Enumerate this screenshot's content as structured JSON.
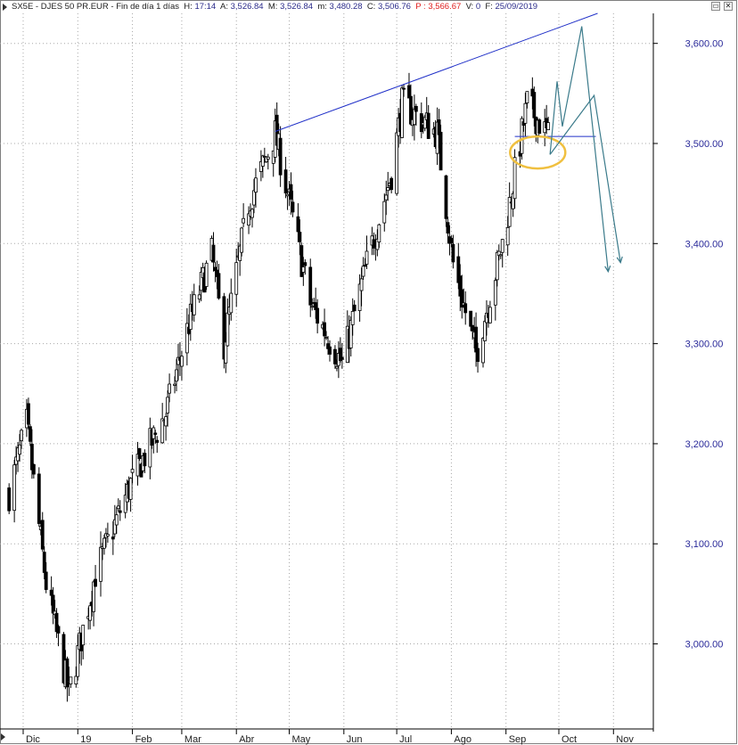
{
  "header": {
    "symbol": "SX5E",
    "name": "DJES 50 PR.EUR",
    "period": "Fin de día 1 días",
    "h_label": "H:",
    "h_value": "17:14",
    "a_label": "A:",
    "a_value": "3,526.84",
    "m_label": "M:",
    "m_value": "3,526.84",
    "min_label": "m:",
    "min_value": "3,480.28",
    "c_label": "C:",
    "c_value": "3,506.76",
    "p_label": "P :",
    "p_value": "3,566.67",
    "v_label": "V:",
    "v_value": "0",
    "f_label": "F:",
    "f_value": "25/09/2019"
  },
  "window_buttons": [
    "▭",
    "✕"
  ],
  "colors": {
    "candle": "#000000",
    "grid": "#a8a8a8",
    "trendline": "#2030c8",
    "projection": "#3a7a8a",
    "highlight": "#f0c040",
    "axis_labels": "#2a2a9a"
  },
  "chart_data": {
    "type": "candlestick",
    "title": "SX5E - DJES 50 PR.EUR",
    "ylim": [
      2915,
      3630
    ],
    "y_ticks": [
      "3,000.00",
      "3,100.00",
      "3,200.00",
      "3,300.00",
      "3,400.00",
      "3,500.00",
      "3,600.00"
    ],
    "x_ticks": [
      "Dic",
      "19",
      "Feb",
      "Mar",
      "Abr",
      "May",
      "Jun",
      "Jul",
      "Ago",
      "Sep",
      "Oct",
      "Nov"
    ],
    "grid": true,
    "waypoints": [
      {
        "date": "2018-11-23",
        "close": 3150
      },
      {
        "date": "2018-12-03",
        "close": 3220
      },
      {
        "date": "2018-12-14",
        "close": 3060
      },
      {
        "date": "2018-12-27",
        "close": 2950
      },
      {
        "date": "2019-01-11",
        "close": 3070
      },
      {
        "date": "2019-01-31",
        "close": 3160
      },
      {
        "date": "2019-02-20",
        "close": 3230
      },
      {
        "date": "2019-03-05",
        "close": 3320
      },
      {
        "date": "2019-03-18",
        "close": 3390
      },
      {
        "date": "2019-03-25",
        "close": 3300
      },
      {
        "date": "2019-04-08",
        "close": 3440
      },
      {
        "date": "2019-04-23",
        "close": 3510
      },
      {
        "date": "2019-05-13",
        "close": 3340
      },
      {
        "date": "2019-05-31",
        "close": 3280
      },
      {
        "date": "2019-06-14",
        "close": 3380
      },
      {
        "date": "2019-06-28",
        "close": 3470
      },
      {
        "date": "2019-07-04",
        "close": 3540
      },
      {
        "date": "2019-07-24",
        "close": 3510
      },
      {
        "date": "2019-08-02",
        "close": 3380
      },
      {
        "date": "2019-08-15",
        "close": 3290
      },
      {
        "date": "2019-08-30",
        "close": 3400
      },
      {
        "date": "2019-09-13",
        "close": 3540
      },
      {
        "date": "2019-09-25",
        "close": 3507
      }
    ],
    "annotations": {
      "trendline": [
        {
          "date": "2019-04-23",
          "value": 3512
        },
        {
          "date": "2019-10-23",
          "value": 3630
        }
      ],
      "support_line": [
        {
          "date": "2019-09-06",
          "value": 3507
        },
        {
          "date": "2019-10-22",
          "value": 3507
        }
      ],
      "highlight_ellipse": {
        "date": "2019-09-19",
        "value": 3491
      },
      "projection_paths": [
        [
          {
            "date": "2019-09-26",
            "value": 3489
          },
          {
            "date": "2019-09-30",
            "value": 3562
          },
          {
            "date": "2019-10-03",
            "value": 3517
          },
          {
            "date": "2019-10-14",
            "value": 3617
          },
          {
            "date": "2019-10-29",
            "value": 3372
          }
        ],
        [
          {
            "date": "2019-09-26",
            "value": 3489
          },
          {
            "date": "2019-10-21",
            "value": 3548
          },
          {
            "date": "2019-11-05",
            "value": 3381
          }
        ]
      ]
    }
  }
}
